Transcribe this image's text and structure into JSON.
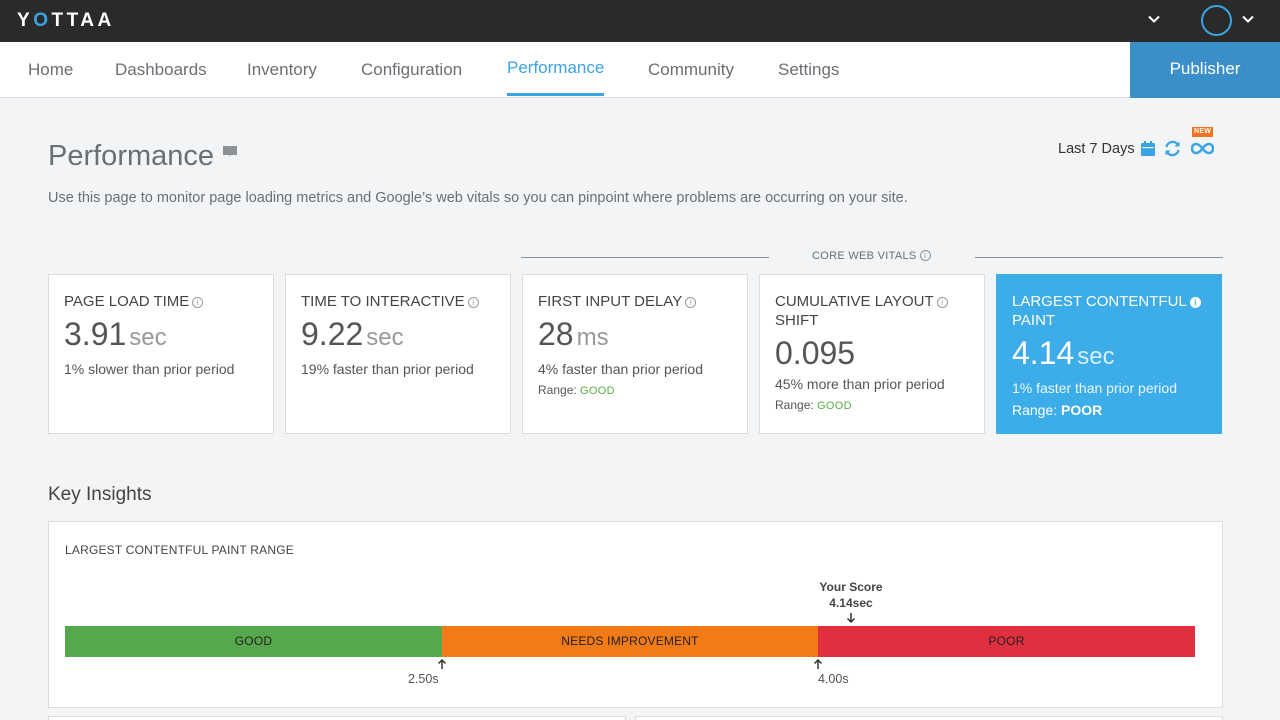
{
  "brand": {
    "logo_prefix": "Y",
    "logo_o": "O",
    "logo_suffix": "TTAA"
  },
  "nav": {
    "items": [
      {
        "label": "Home"
      },
      {
        "label": "Dashboards"
      },
      {
        "label": "Inventory"
      },
      {
        "label": "Configuration"
      },
      {
        "label": "Performance",
        "active": true
      },
      {
        "label": "Community"
      },
      {
        "label": "Settings"
      }
    ],
    "publisher_label": "Publisher"
  },
  "header": {
    "title": "Performance",
    "subtitle": "Use this page to monitor page loading metrics and Google’s web vitals so you can pinpoint where problems are occurring on your site.",
    "date_range": "Last 7 Days",
    "new_badge": "NEW"
  },
  "core_web_vitals_label": "CORE WEB VITALS",
  "metrics": [
    {
      "title": "PAGE LOAD TIME",
      "value": "3.91",
      "unit": "sec",
      "delta": "1% slower than prior period"
    },
    {
      "title": "TIME TO INTERACTIVE",
      "value": "9.22",
      "unit": "sec",
      "delta": "19% faster than prior period"
    },
    {
      "title": "FIRST INPUT DELAY",
      "value": "28",
      "unit": "ms",
      "delta": "4% faster than prior period",
      "range_label": "Range:",
      "range": "GOOD"
    },
    {
      "title_line1": "CUMULATIVE LAYOUT",
      "title_line2": "SHIFT",
      "value": "0.095",
      "unit": "",
      "delta": "45% more than prior period",
      "range_label": "Range:",
      "range": "GOOD"
    },
    {
      "title_line1": "LARGEST CONTENTFUL",
      "title_line2": "PAINT",
      "value": "4.14",
      "unit": "sec",
      "delta": "1% faster than prior period",
      "range_label": "Range:",
      "range": "POOR"
    }
  ],
  "insights": {
    "title": "Key Insights",
    "panel_label": "LARGEST CONTENTFUL PAINT RANGE",
    "score_label_line1": "Your Score",
    "score_label_line2": "4.14sec",
    "segments": {
      "good": "GOOD",
      "needs": "NEEDS IMPROVEMENT",
      "poor": "POOR"
    },
    "threshold_1": "2.50s",
    "threshold_2": "4.00s"
  },
  "colors": {
    "accent": "#3aa3e3",
    "highlight_card": "#3dadea",
    "good": "#56a84c",
    "needs_improvement": "#f37b17",
    "poor": "#e0303f",
    "topbar": "#2a2a2a",
    "publisher": "#3a8fc9"
  }
}
